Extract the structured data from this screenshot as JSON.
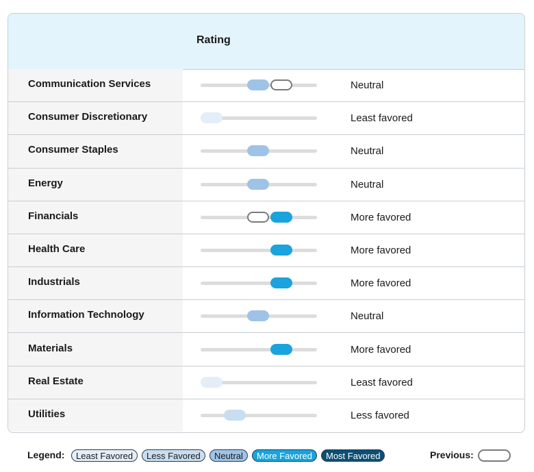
{
  "header": {
    "title": "Rating"
  },
  "rows": [
    {
      "sector": "Communication Services",
      "rating": "Neutral",
      "level": 3,
      "previous_level": 4
    },
    {
      "sector": "Consumer Discretionary",
      "rating": "Least favored",
      "level": 1
    },
    {
      "sector": "Consumer Staples",
      "rating": "Neutral",
      "level": 3
    },
    {
      "sector": "Energy",
      "rating": "Neutral",
      "level": 3
    },
    {
      "sector": "Financials",
      "rating": "More favored",
      "level": 4,
      "previous_level": 3
    },
    {
      "sector": "Health Care",
      "rating": "More favored",
      "level": 4
    },
    {
      "sector": "Industrials",
      "rating": "More favored",
      "level": 4
    },
    {
      "sector": "Information Technology",
      "rating": "Neutral",
      "level": 3
    },
    {
      "sector": "Materials",
      "rating": "More favored",
      "level": 4
    },
    {
      "sector": "Real Estate",
      "rating": "Least favored",
      "level": 1
    },
    {
      "sector": "Utilities",
      "rating": "Less favored",
      "level": 2
    }
  ],
  "legend": {
    "title": "Legend:",
    "items": [
      {
        "label": "Least Favored",
        "color": "#e3eef8",
        "text_color": "#1a1a1a"
      },
      {
        "label": "Less Favored",
        "color": "#c9ddf0",
        "text_color": "#1a1a1a"
      },
      {
        "label": "Neutral",
        "color": "#9fc3e7",
        "text_color": "#1a1a1a"
      },
      {
        "label": "More Favored",
        "color": "#1aa3dc",
        "text_color": "#ffffff"
      },
      {
        "label": "Most Favored",
        "color": "#0d4f73",
        "text_color": "#ffffff"
      }
    ],
    "previous": "Previous:"
  }
}
